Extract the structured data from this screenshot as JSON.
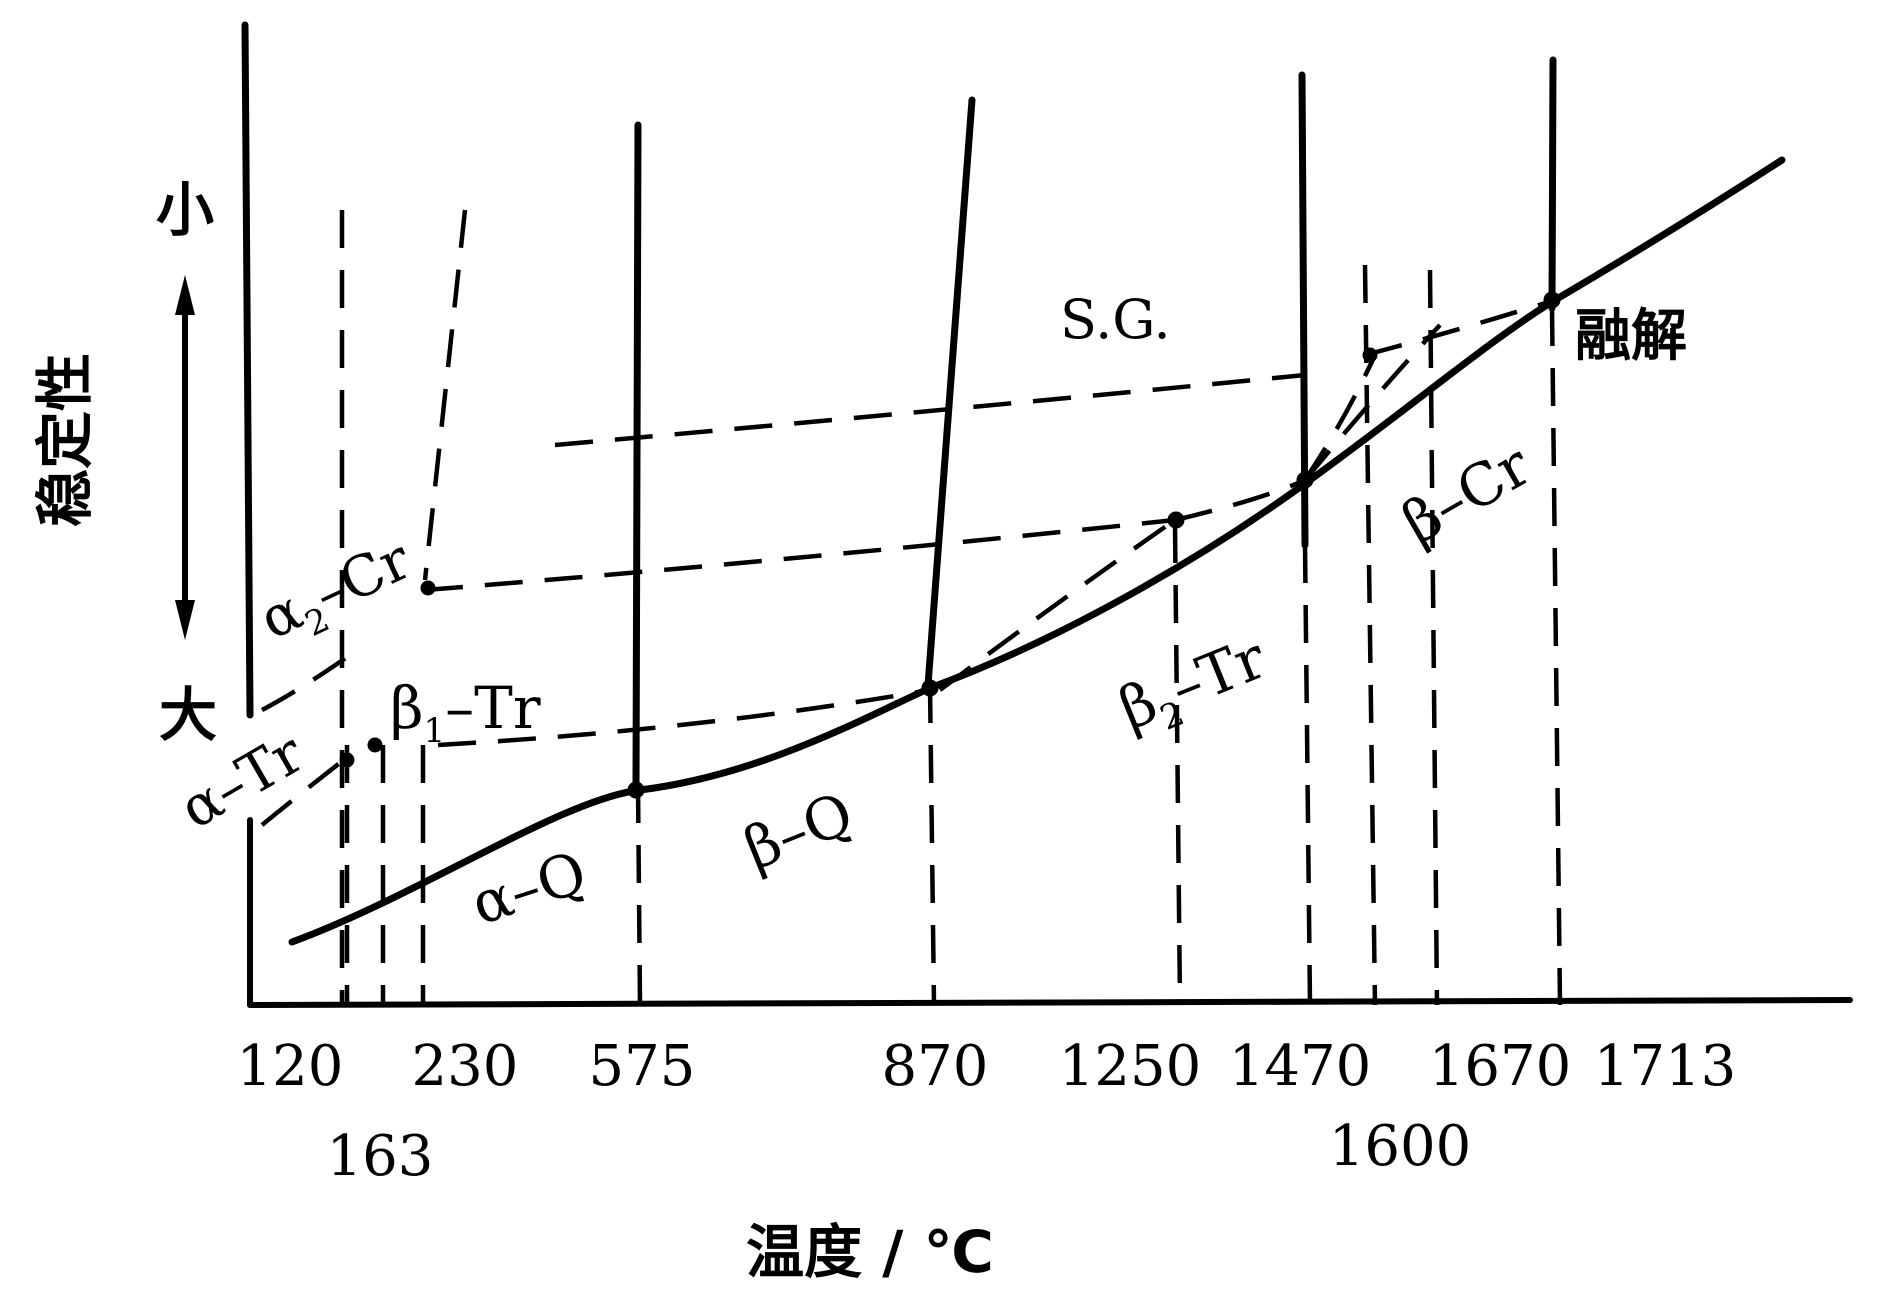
{
  "y_axis": {
    "label": "稳定性",
    "top_label": "小",
    "bottom_label": "大"
  },
  "x_axis": {
    "label": "温度 / ℃",
    "ticks_row1": [
      "120",
      "230",
      "575",
      "870",
      "1250",
      "1470",
      "1670",
      "1713"
    ],
    "ticks_row2": [
      "163",
      "1600"
    ]
  },
  "phases": {
    "alpha_q": "α–Q",
    "beta_q": "β–Q",
    "alpha_tr": "α–Tr",
    "beta1_tr": "β",
    "beta1_sub": "1",
    "beta1_rest": "–Tr",
    "alpha2_cr": "α",
    "alpha2_sub": "2",
    "alpha2_rest": "–Cr",
    "beta2_tr": "β",
    "beta2_sub": "2",
    "beta2_rest": "–Tr",
    "beta_cr": "β–Cr",
    "sg": "S.G.",
    "melt": "融解"
  }
}
